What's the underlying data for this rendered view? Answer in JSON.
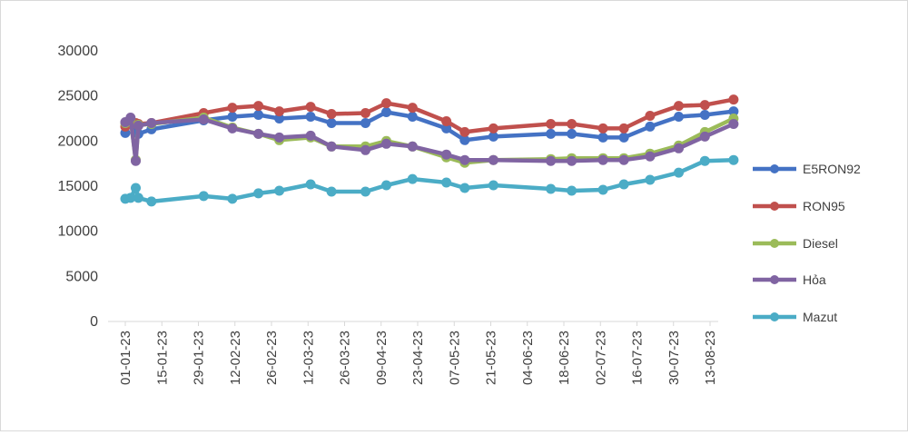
{
  "chart_data": {
    "type": "line",
    "title": "",
    "xlabel": "",
    "ylabel": "",
    "ylim": [
      0,
      30000
    ],
    "yticks": [
      0,
      5000,
      10000,
      15000,
      20000,
      25000,
      30000
    ],
    "grid": "horizontal-none",
    "legend_position": "right",
    "x_tick_labels": [
      "01-01-23",
      "15-01-23",
      "29-01-23",
      "12-02-23",
      "26-02-23",
      "12-03-23",
      "26-03-23",
      "09-04-23",
      "23-04-23",
      "07-05-23",
      "21-05-23",
      "04-06-23",
      "18-06-23",
      "02-07-23",
      "16-07-23",
      "30-07-23",
      "13-08-23"
    ],
    "x": [
      "2023-01-01",
      "2023-01-03",
      "2023-01-05",
      "2023-01-06",
      "2023-01-11",
      "2023-01-31",
      "2023-02-11",
      "2023-02-21",
      "2023-03-01",
      "2023-03-13",
      "2023-03-21",
      "2023-04-03",
      "2023-04-11",
      "2023-04-21",
      "2023-05-04",
      "2023-05-11",
      "2023-05-22",
      "2023-06-13",
      "2023-06-21",
      "2023-07-03",
      "2023-07-11",
      "2023-07-21",
      "2023-08-01",
      "2023-08-11",
      "2023-08-22"
    ],
    "series": [
      {
        "name": "E5RON92",
        "color": "#4472C4",
        "values": [
          20900,
          22000,
          21200,
          20800,
          21300,
          22300,
          22700,
          22900,
          22500,
          22700,
          22000,
          22000,
          23200,
          22700,
          21400,
          20100,
          20500,
          20800,
          20800,
          20400,
          20400,
          21600,
          22700,
          22900,
          23300
        ]
      },
      {
        "name": "RON95",
        "color": "#C0504D",
        "values": [
          21600,
          22000,
          22000,
          21900,
          22000,
          23100,
          23700,
          23900,
          23300,
          23800,
          23000,
          23100,
          24200,
          23700,
          22200,
          21000,
          21400,
          21900,
          21900,
          21400,
          21400,
          22800,
          23900,
          24000,
          24600
        ]
      },
      {
        "name": "Diesel",
        "color": "#9BBB59",
        "values": [
          22000,
          22500,
          17900,
          21800,
          21900,
          22600,
          21500,
          20800,
          20100,
          20400,
          19400,
          19400,
          20000,
          19400,
          18200,
          17600,
          17900,
          18000,
          18100,
          18100,
          18100,
          18600,
          19500,
          21000,
          22500
        ]
      },
      {
        "name": "Hỏa",
        "color": "#8064A2",
        "values": [
          22100,
          22600,
          17800,
          21700,
          22000,
          22400,
          21400,
          20800,
          20400,
          20600,
          19400,
          19000,
          19700,
          19400,
          18500,
          17900,
          17900,
          17800,
          17800,
          17900,
          17900,
          18300,
          19200,
          20500,
          21900
        ]
      },
      {
        "name": "Mazut",
        "color": "#4BACC6",
        "values": [
          13600,
          13700,
          14800,
          13700,
          13300,
          13900,
          13600,
          14200,
          14500,
          15200,
          14400,
          14400,
          15100,
          15800,
          15400,
          14800,
          15100,
          14700,
          14500,
          14600,
          15200,
          15700,
          16500,
          17800,
          17900
        ]
      }
    ]
  }
}
